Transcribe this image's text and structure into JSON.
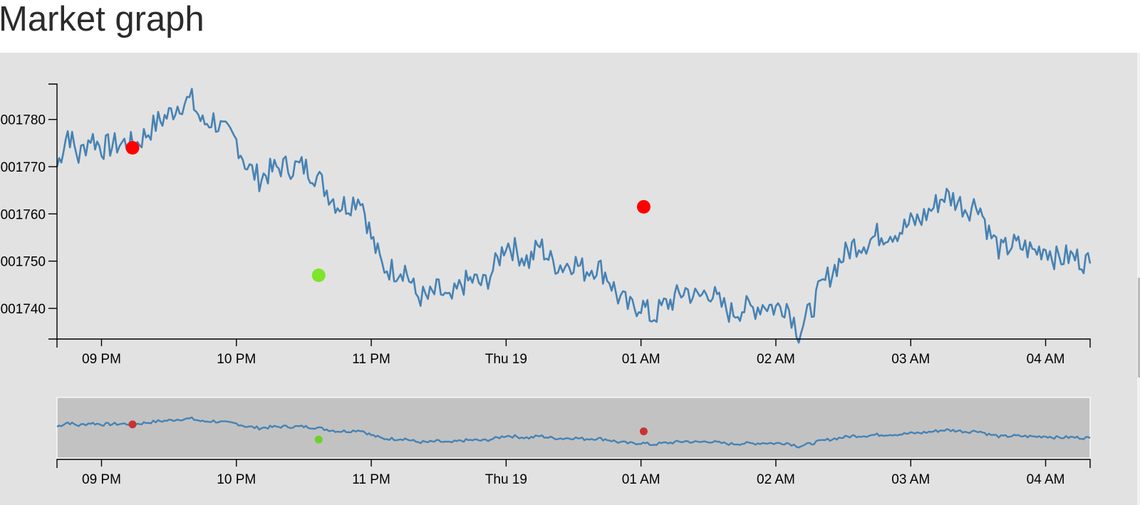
{
  "page": {
    "title": "Market graph"
  },
  "colors": {
    "line": "#4682b4",
    "sell_marker": "#ff0000",
    "buy_marker": "#7ee52a",
    "mini_sell_marker": "#c83232",
    "mini_buy_marker": "#6cd22b",
    "panel_bg": "#e2e2e2",
    "brush_bg": "#c2c2c2"
  },
  "chart_data": [
    {
      "type": "line",
      "title": "Market graph",
      "xlabel": "",
      "ylabel": "",
      "x_ticks": [
        "09 PM",
        "10 PM",
        "11 PM",
        "Thu 19",
        "01 AM",
        "02 AM",
        "03 AM",
        "04 AM"
      ],
      "y_ticks": [
        "001780",
        "001770",
        "001760",
        "001750",
        "001740"
      ],
      "y_range": [
        0.0017335,
        0.0017875
      ],
      "x_range_hours_after_9pm": [
        -0.33,
        7.33
      ],
      "grid": false,
      "anchors": [
        {
          "t": -0.33,
          "y": 0.00177
        },
        {
          "t": -0.25,
          "y": 0.0017775
        },
        {
          "t": -0.17,
          "y": 0.001772
        },
        {
          "t": -0.08,
          "y": 0.0017765
        },
        {
          "t": 0.0,
          "y": 0.001774
        },
        {
          "t": 0.08,
          "y": 0.0017745
        },
        {
          "t": 0.17,
          "y": 0.001775
        },
        {
          "t": 0.25,
          "y": 0.0017745
        },
        {
          "t": 0.33,
          "y": 0.001777
        },
        {
          "t": 0.42,
          "y": 0.0017795
        },
        {
          "t": 0.5,
          "y": 0.001781
        },
        {
          "t": 0.58,
          "y": 0.0017835
        },
        {
          "t": 0.67,
          "y": 0.001784
        },
        {
          "t": 0.75,
          "y": 0.001779
        },
        {
          "t": 0.83,
          "y": 0.00178
        },
        {
          "t": 0.92,
          "y": 0.001777
        },
        {
          "t": 1.0,
          "y": 0.0017755
        },
        {
          "t": 1.08,
          "y": 0.00177
        },
        {
          "t": 1.17,
          "y": 0.0017675
        },
        {
          "t": 1.25,
          "y": 0.001769
        },
        {
          "t": 1.33,
          "y": 0.00177
        },
        {
          "t": 1.42,
          "y": 0.00177
        },
        {
          "t": 1.5,
          "y": 0.00177
        },
        {
          "t": 1.58,
          "y": 0.0017685
        },
        {
          "t": 1.67,
          "y": 0.001765
        },
        {
          "t": 1.75,
          "y": 0.001762
        },
        {
          "t": 1.83,
          "y": 0.001762
        },
        {
          "t": 1.92,
          "y": 0.001764
        },
        {
          "t": 2.0,
          "y": 0.001755
        },
        {
          "t": 2.08,
          "y": 0.001749
        },
        {
          "t": 2.17,
          "y": 0.001748
        },
        {
          "t": 2.25,
          "y": 0.0017485
        },
        {
          "t": 2.33,
          "y": 0.001743
        },
        {
          "t": 2.42,
          "y": 0.001742
        },
        {
          "t": 2.5,
          "y": 0.001744
        },
        {
          "t": 2.58,
          "y": 0.001741
        },
        {
          "t": 2.67,
          "y": 0.001745
        },
        {
          "t": 2.75,
          "y": 0.001746
        },
        {
          "t": 2.83,
          "y": 0.001745
        },
        {
          "t": 2.92,
          "y": 0.001749
        },
        {
          "t": 3.0,
          "y": 0.001754
        },
        {
          "t": 3.08,
          "y": 0.001752
        },
        {
          "t": 3.17,
          "y": 0.00175
        },
        {
          "t": 3.25,
          "y": 0.0017535
        },
        {
          "t": 3.33,
          "y": 0.00175
        },
        {
          "t": 3.42,
          "y": 0.001749
        },
        {
          "t": 3.5,
          "y": 0.00175
        },
        {
          "t": 3.58,
          "y": 0.001748
        },
        {
          "t": 3.67,
          "y": 0.001749
        },
        {
          "t": 3.75,
          "y": 0.001747
        },
        {
          "t": 3.83,
          "y": 0.0017425
        },
        {
          "t": 3.92,
          "y": 0.00174
        },
        {
          "t": 4.0,
          "y": 0.001741
        },
        {
          "t": 4.08,
          "y": 0.001738
        },
        {
          "t": 4.17,
          "y": 0.0017405
        },
        {
          "t": 4.25,
          "y": 0.001742
        },
        {
          "t": 4.33,
          "y": 0.001744
        },
        {
          "t": 4.42,
          "y": 0.001742
        },
        {
          "t": 4.5,
          "y": 0.001744
        },
        {
          "t": 4.58,
          "y": 0.001741
        },
        {
          "t": 4.67,
          "y": 0.001739
        },
        {
          "t": 4.75,
          "y": 0.00174
        },
        {
          "t": 4.83,
          "y": 0.00174
        },
        {
          "t": 4.92,
          "y": 0.001741
        },
        {
          "t": 5.0,
          "y": 0.00174
        },
        {
          "t": 5.08,
          "y": 0.001741
        },
        {
          "t": 5.17,
          "y": 0.001735
        },
        {
          "t": 5.25,
          "y": 0.001739
        },
        {
          "t": 5.33,
          "y": 0.001744
        },
        {
          "t": 5.42,
          "y": 0.001748
        },
        {
          "t": 5.5,
          "y": 0.001751
        },
        {
          "t": 5.58,
          "y": 0.0017535
        },
        {
          "t": 5.67,
          "y": 0.001754
        },
        {
          "t": 5.75,
          "y": 0.0017555
        },
        {
          "t": 5.83,
          "y": 0.001756
        },
        {
          "t": 5.92,
          "y": 0.0017565
        },
        {
          "t": 6.0,
          "y": 0.001758
        },
        {
          "t": 6.08,
          "y": 0.001759
        },
        {
          "t": 6.17,
          "y": 0.0017615
        },
        {
          "t": 6.25,
          "y": 0.001764
        },
        {
          "t": 6.33,
          "y": 0.001763
        },
        {
          "t": 6.42,
          "y": 0.001761
        },
        {
          "t": 6.5,
          "y": 0.0017625
        },
        {
          "t": 6.58,
          "y": 0.001756
        },
        {
          "t": 6.67,
          "y": 0.001752
        },
        {
          "t": 6.75,
          "y": 0.0017535
        },
        {
          "t": 6.83,
          "y": 0.001753
        },
        {
          "t": 6.92,
          "y": 0.001752
        },
        {
          "t": 7.0,
          "y": 0.001753
        },
        {
          "t": 7.08,
          "y": 0.0017505
        },
        {
          "t": 7.17,
          "y": 0.001751
        },
        {
          "t": 7.25,
          "y": 0.0017505
        },
        {
          "t": 7.33,
          "y": 0.0017495
        }
      ],
      "markers": [
        {
          "t": 0.23,
          "y": 0.001774,
          "kind": "sell"
        },
        {
          "t": 1.61,
          "y": 0.001747,
          "kind": "buy"
        },
        {
          "t": 4.02,
          "y": 0.0017615,
          "kind": "sell"
        }
      ]
    },
    {
      "type": "line",
      "title": "",
      "note_role": "overview brush",
      "x_ticks": [
        "09 PM",
        "10 PM",
        "11 PM",
        "Thu 19",
        "01 AM",
        "02 AM",
        "03 AM",
        "04 AM"
      ],
      "markers": [
        {
          "t": 0.23,
          "kind": "sell"
        },
        {
          "t": 1.61,
          "kind": "buy"
        },
        {
          "t": 4.02,
          "kind": "sell"
        }
      ]
    }
  ]
}
